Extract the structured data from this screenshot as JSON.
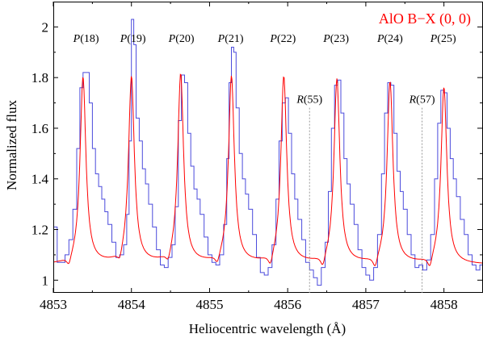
{
  "chart_data": {
    "type": "line",
    "title": "",
    "xlabel": "Heliocentric wavelength (Å)",
    "ylabel": "Normalized flux",
    "xlim": [
      4853.0,
      4858.5
    ],
    "ylim": [
      0.95,
      2.1
    ],
    "xticks": [
      4853,
      4854,
      4855,
      4856,
      4857,
      4858
    ],
    "yticks": [
      1,
      1.2,
      1.4,
      1.6,
      1.8,
      2
    ],
    "ytick_labels": [
      "1",
      "1.2",
      "1.4",
      "1.6",
      "1.8",
      "2"
    ],
    "grid": false,
    "legend": {
      "text": "AlO B−X (0, 0)",
      "position": "top-right",
      "color": "#ff0000"
    },
    "colors": {
      "observed": "#4b4bdc",
      "model": "#ff0000",
      "frame": "#000000",
      "marker_line": "#999999"
    },
    "annotations": [
      {
        "prefix": "P",
        "num": "(18)",
        "x": 4853.42,
        "y": 1.94
      },
      {
        "prefix": "P",
        "num": "(19)",
        "x": 4854.02,
        "y": 1.94
      },
      {
        "prefix": "P",
        "num": "(20)",
        "x": 4854.64,
        "y": 1.94
      },
      {
        "prefix": "P",
        "num": "(21)",
        "x": 4855.27,
        "y": 1.94
      },
      {
        "prefix": "P",
        "num": "(22)",
        "x": 4855.94,
        "y": 1.94
      },
      {
        "prefix": "P",
        "num": "(23)",
        "x": 4856.62,
        "y": 1.94
      },
      {
        "prefix": "P",
        "num": "(24)",
        "x": 4857.31,
        "y": 1.94
      },
      {
        "prefix": "P",
        "num": "(25)",
        "x": 4857.99,
        "y": 1.94
      },
      {
        "prefix": "R",
        "num": "(55)",
        "x": 4856.28,
        "y": 1.7,
        "marker": true
      },
      {
        "prefix": "R",
        "num": "(57)",
        "x": 4857.72,
        "y": 1.7,
        "marker": true
      }
    ],
    "series": [
      {
        "style": "step",
        "points": [
          [
            4853.0,
            1.21
          ],
          [
            4853.05,
            1.07
          ],
          [
            4853.1,
            1.07
          ],
          [
            4853.15,
            1.1
          ],
          [
            4853.2,
            1.16
          ],
          [
            4853.25,
            1.28
          ],
          [
            4853.3,
            1.52
          ],
          [
            4853.34,
            1.76
          ],
          [
            4853.38,
            1.82
          ],
          [
            4853.42,
            1.82
          ],
          [
            4853.46,
            1.7
          ],
          [
            4853.5,
            1.52
          ],
          [
            4853.54,
            1.42
          ],
          [
            4853.58,
            1.37
          ],
          [
            4853.62,
            1.32
          ],
          [
            4853.66,
            1.27
          ],
          [
            4853.7,
            1.22
          ],
          [
            4853.75,
            1.15
          ],
          [
            4853.8,
            1.09
          ],
          [
            4853.85,
            1.1
          ],
          [
            4853.9,
            1.14
          ],
          [
            4853.94,
            1.26
          ],
          [
            4853.97,
            1.55
          ],
          [
            4854.0,
            2.03
          ],
          [
            4854.03,
            1.93
          ],
          [
            4854.06,
            1.64
          ],
          [
            4854.1,
            1.55
          ],
          [
            4854.14,
            1.44
          ],
          [
            4854.18,
            1.38
          ],
          [
            4854.22,
            1.3
          ],
          [
            4854.27,
            1.21
          ],
          [
            4854.32,
            1.12
          ],
          [
            4854.37,
            1.06
          ],
          [
            4854.42,
            1.05
          ],
          [
            4854.47,
            1.09
          ],
          [
            4854.52,
            1.14
          ],
          [
            4854.56,
            1.29
          ],
          [
            4854.6,
            1.63
          ],
          [
            4854.64,
            1.81
          ],
          [
            4854.68,
            1.78
          ],
          [
            4854.72,
            1.58
          ],
          [
            4854.76,
            1.45
          ],
          [
            4854.8,
            1.36
          ],
          [
            4854.84,
            1.32
          ],
          [
            4854.88,
            1.26
          ],
          [
            4854.93,
            1.17
          ],
          [
            4854.98,
            1.1
          ],
          [
            4855.03,
            1.07
          ],
          [
            4855.08,
            1.06
          ],
          [
            4855.13,
            1.1
          ],
          [
            4855.18,
            1.22
          ],
          [
            4855.22,
            1.48
          ],
          [
            4855.25,
            1.78
          ],
          [
            4855.28,
            1.92
          ],
          [
            4855.31,
            1.9
          ],
          [
            4855.34,
            1.68
          ],
          [
            4855.38,
            1.5
          ],
          [
            4855.42,
            1.4
          ],
          [
            4855.46,
            1.34
          ],
          [
            4855.5,
            1.28
          ],
          [
            4855.55,
            1.18
          ],
          [
            4855.6,
            1.09
          ],
          [
            4855.65,
            1.03
          ],
          [
            4855.7,
            1.02
          ],
          [
            4855.75,
            1.05
          ],
          [
            4855.8,
            1.14
          ],
          [
            4855.85,
            1.32
          ],
          [
            4855.89,
            1.55
          ],
          [
            4855.93,
            1.7
          ],
          [
            4855.97,
            1.72
          ],
          [
            4856.01,
            1.58
          ],
          [
            4856.05,
            1.42
          ],
          [
            4856.09,
            1.32
          ],
          [
            4856.13,
            1.24
          ],
          [
            4856.18,
            1.16
          ],
          [
            4856.23,
            1.07
          ],
          [
            4856.28,
            1.04
          ],
          [
            4856.33,
            1.01
          ],
          [
            4856.38,
            0.98
          ],
          [
            4856.43,
            1.05
          ],
          [
            4856.48,
            1.15
          ],
          [
            4856.52,
            1.35
          ],
          [
            4856.56,
            1.6
          ],
          [
            4856.6,
            1.77
          ],
          [
            4856.64,
            1.79
          ],
          [
            4856.68,
            1.66
          ],
          [
            4856.72,
            1.48
          ],
          [
            4856.76,
            1.38
          ],
          [
            4856.8,
            1.3
          ],
          [
            4856.85,
            1.22
          ],
          [
            4856.9,
            1.12
          ],
          [
            4856.95,
            1.05
          ],
          [
            4857.0,
            1.02
          ],
          [
            4857.05,
            1.0
          ],
          [
            4857.1,
            1.05
          ],
          [
            4857.15,
            1.18
          ],
          [
            4857.2,
            1.42
          ],
          [
            4857.24,
            1.66
          ],
          [
            4857.28,
            1.78
          ],
          [
            4857.32,
            1.77
          ],
          [
            4857.36,
            1.58
          ],
          [
            4857.4,
            1.43
          ],
          [
            4857.44,
            1.35
          ],
          [
            4857.48,
            1.28
          ],
          [
            4857.53,
            1.18
          ],
          [
            4857.58,
            1.1
          ],
          [
            4857.63,
            1.05
          ],
          [
            4857.68,
            1.06
          ],
          [
            4857.73,
            1.04
          ],
          [
            4857.78,
            1.08
          ],
          [
            4857.83,
            1.18
          ],
          [
            4857.88,
            1.4
          ],
          [
            4857.92,
            1.62
          ],
          [
            4857.96,
            1.75
          ],
          [
            4858.0,
            1.74
          ],
          [
            4858.04,
            1.6
          ],
          [
            4858.08,
            1.48
          ],
          [
            4858.12,
            1.4
          ],
          [
            4858.16,
            1.33
          ],
          [
            4858.21,
            1.24
          ],
          [
            4858.26,
            1.18
          ],
          [
            4858.31,
            1.1
          ],
          [
            4858.36,
            1.06
          ],
          [
            4858.41,
            1.04
          ],
          [
            4858.46,
            1.06
          ],
          [
            4858.5,
            1.08
          ]
        ]
      },
      {
        "style": "model",
        "baseline": 1.06,
        "width": 0.045,
        "peaks": [
          [
            4853.38,
            0.74
          ],
          [
            4854.0,
            0.74
          ],
          [
            4854.63,
            0.75
          ],
          [
            4855.28,
            0.74
          ],
          [
            4855.95,
            0.74
          ],
          [
            4856.63,
            0.73
          ],
          [
            4857.31,
            0.72
          ],
          [
            4858.0,
            0.7
          ]
        ],
        "dips": [
          [
            4853.2,
            0.04
          ],
          [
            4853.85,
            0.04
          ],
          [
            4854.47,
            0.04
          ],
          [
            4855.1,
            0.04
          ],
          [
            4855.78,
            0.05
          ],
          [
            4856.45,
            0.05
          ],
          [
            4857.12,
            0.05
          ],
          [
            4857.82,
            0.05
          ]
        ]
      }
    ]
  }
}
